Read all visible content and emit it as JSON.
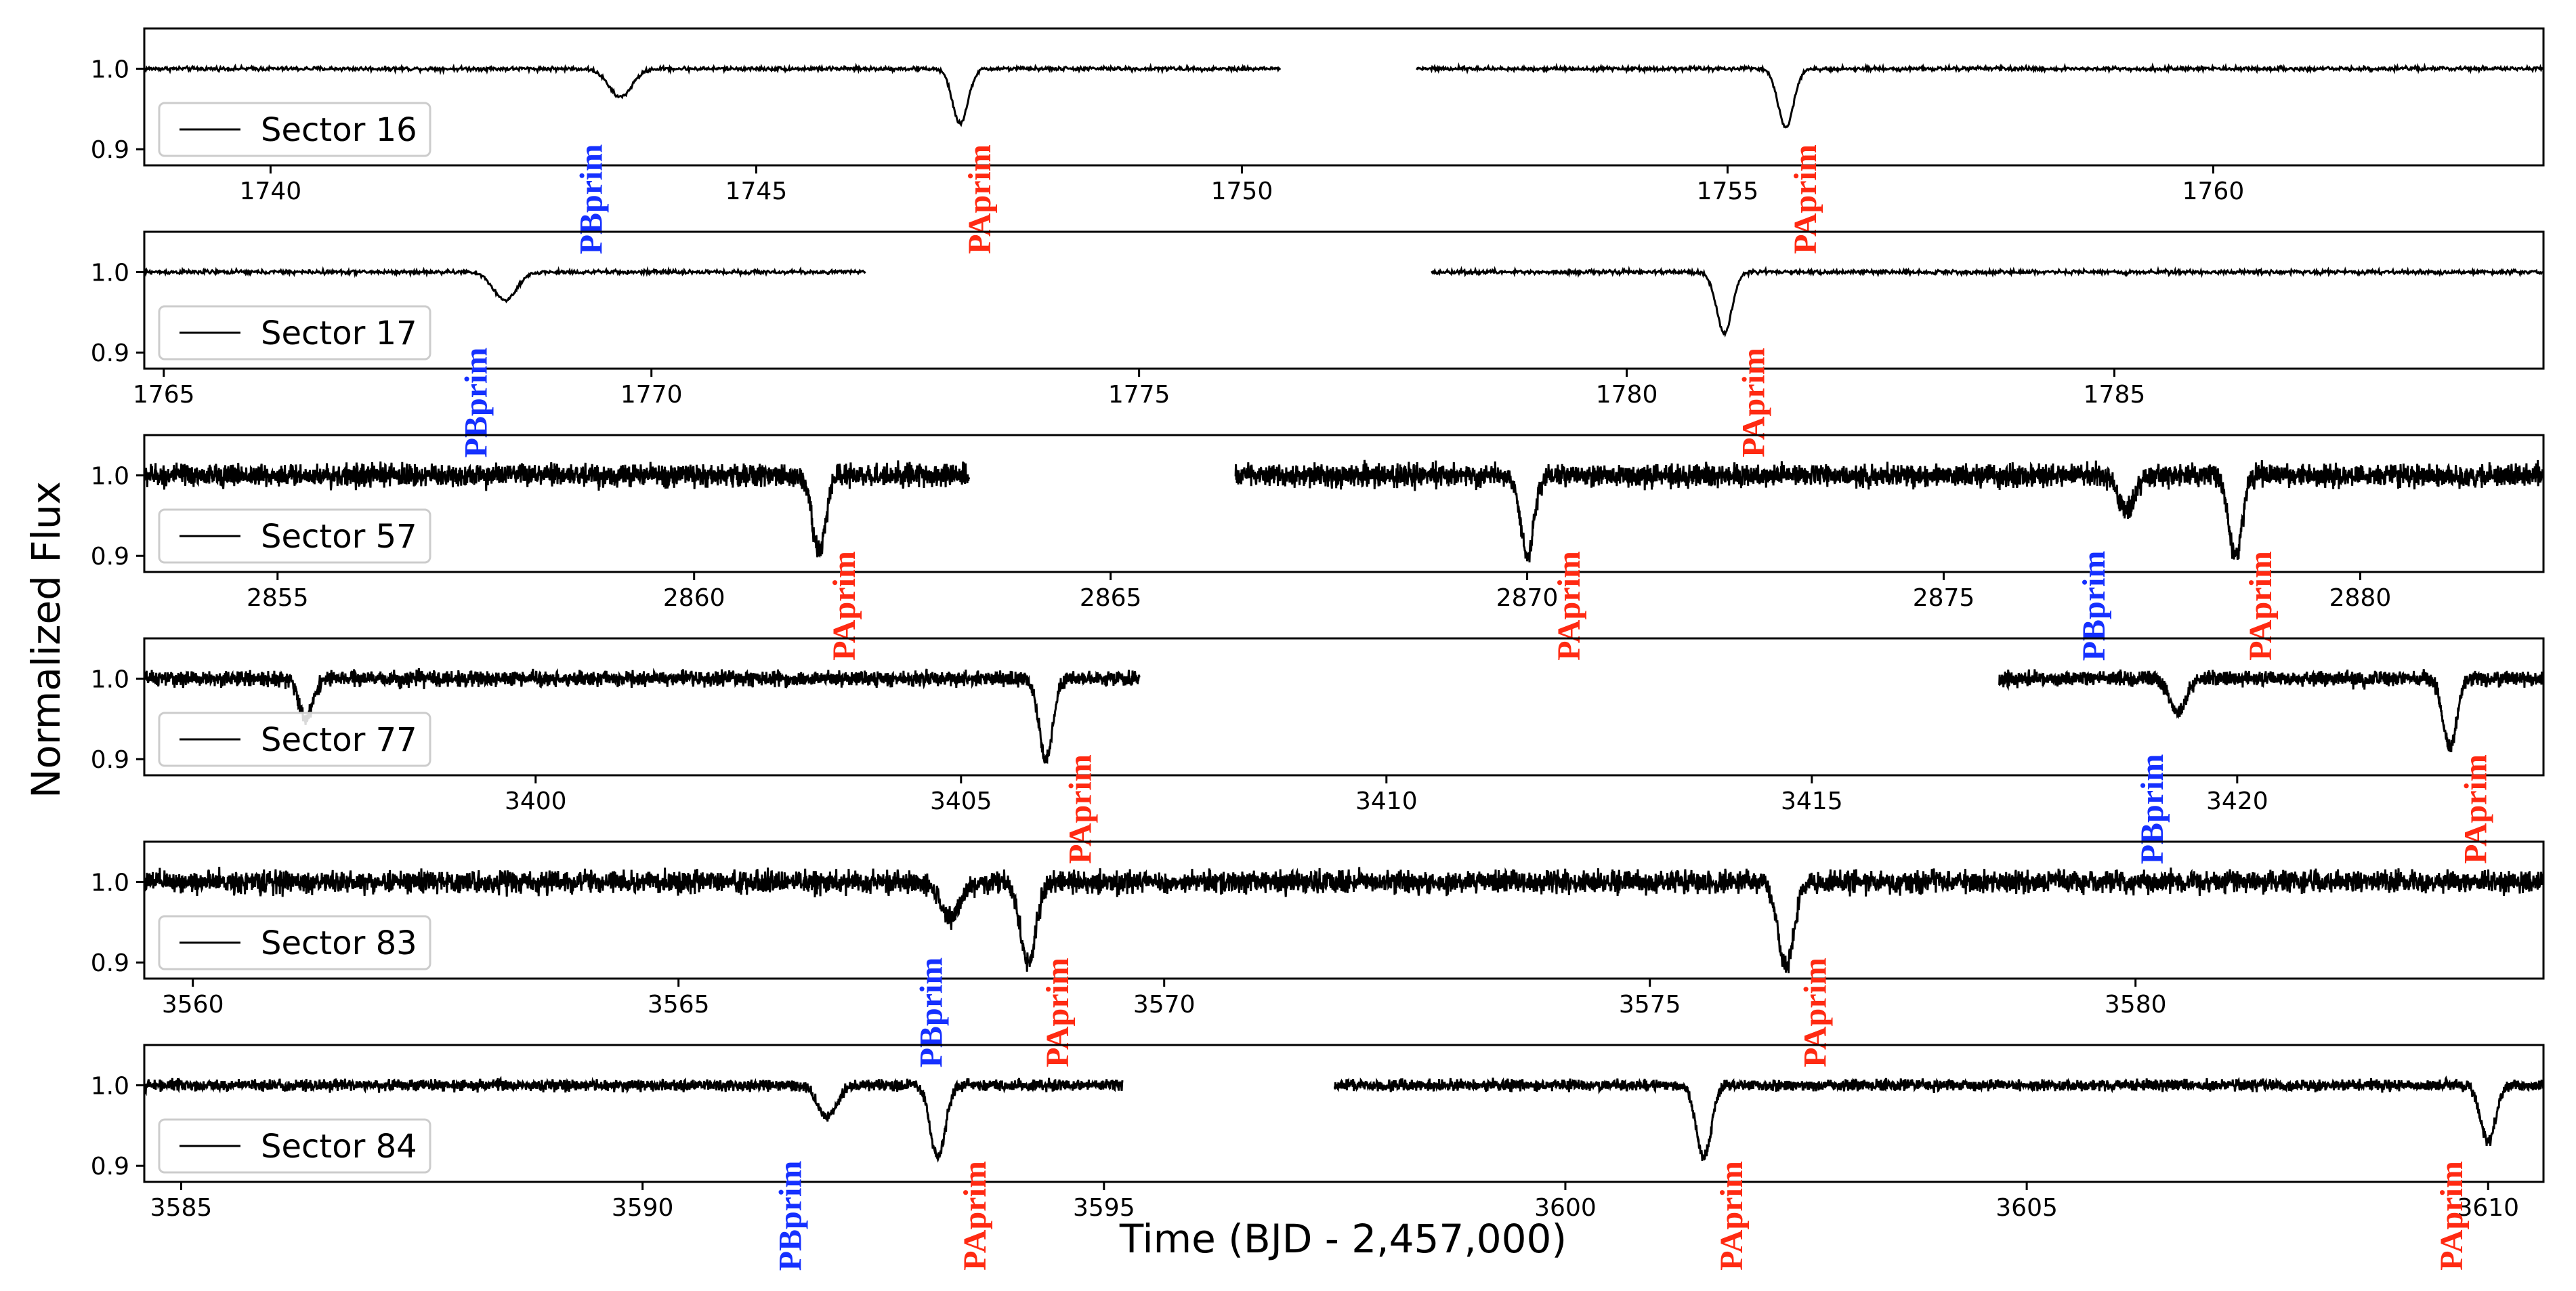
{
  "chart_data": {
    "type": "line",
    "ylabel": "Normalized Flux",
    "xlabel": "Time (BJD - 2,457,000)",
    "colors": {
      "data": "#000000",
      "PA": "#ff2a12",
      "PB": "#1530ff"
    },
    "panels": [
      {
        "legend": "Sector 16",
        "xlim": [
          1738.7,
          1763.4
        ],
        "ylim": [
          0.88,
          1.05
        ],
        "xticks": [
          1740,
          1745,
          1750,
          1755,
          1760
        ],
        "yticks": [
          0.9,
          1.0
        ],
        "noise": 0.003,
        "segments": [
          [
            1738.7,
            1750.4
          ],
          [
            1751.8,
            1763.4
          ]
        ],
        "dips": [
          {
            "t": 1743.6,
            "depth": 0.035,
            "width": 0.12
          },
          {
            "t": 1747.1,
            "depth": 0.068,
            "width": 0.08
          },
          {
            "t": 1755.6,
            "depth": 0.072,
            "width": 0.08
          }
        ],
        "labels": [
          {
            "text": "PBprim",
            "t": 1743.3,
            "kind": "PB"
          },
          {
            "text": "PAprim",
            "t": 1747.3,
            "kind": "PA"
          },
          {
            "text": "PAprim",
            "t": 1755.8,
            "kind": "PA"
          }
        ]
      },
      {
        "legend": "Sector 17",
        "xlim": [
          1764.8,
          1789.4
        ],
        "ylim": [
          0.88,
          1.05
        ],
        "xticks": [
          1765,
          1770,
          1775,
          1780,
          1785
        ],
        "yticks": [
          0.9,
          1.0
        ],
        "noise": 0.003,
        "segments": [
          [
            1764.8,
            1772.2
          ],
          [
            1778.0,
            1789.4
          ]
        ],
        "dips": [
          {
            "t": 1768.5,
            "depth": 0.035,
            "width": 0.12
          },
          {
            "t": 1781.0,
            "depth": 0.075,
            "width": 0.08
          }
        ],
        "labels": [
          {
            "text": "PBprim",
            "t": 1768.2,
            "kind": "PB"
          },
          {
            "text": "PAprim",
            "t": 1781.3,
            "kind": "PA"
          }
        ]
      },
      {
        "legend": "Sector 57",
        "xlim": [
          2853.4,
          2882.2
        ],
        "ylim": [
          0.88,
          1.05
        ],
        "xticks": [
          2855,
          2860,
          2865,
          2870,
          2875,
          2880
        ],
        "yticks": [
          0.9,
          1.0
        ],
        "noise": 0.012,
        "segments": [
          [
            2853.4,
            2863.3
          ],
          [
            2866.5,
            2882.2
          ]
        ],
        "dips": [
          {
            "t": 2861.5,
            "depth": 0.095,
            "width": 0.08
          },
          {
            "t": 2870.0,
            "depth": 0.1,
            "width": 0.08
          },
          {
            "t": 2877.2,
            "depth": 0.045,
            "width": 0.1
          },
          {
            "t": 2878.5,
            "depth": 0.1,
            "width": 0.08
          }
        ],
        "labels": [
          {
            "text": "PAprim",
            "t": 2861.8,
            "kind": "PA"
          },
          {
            "text": "PAprim",
            "t": 2870.5,
            "kind": "PA"
          },
          {
            "text": "PBprim",
            "t": 2876.8,
            "kind": "PB"
          },
          {
            "text": "PAprim",
            "t": 2878.8,
            "kind": "PA"
          }
        ]
      },
      {
        "legend": "Sector 77",
        "xlim": [
          3395.4,
          3423.6
        ],
        "ylim": [
          0.88,
          1.05
        ],
        "xticks": [
          3400,
          3405,
          3410,
          3415,
          3420
        ],
        "yticks": [
          0.9,
          1.0
        ],
        "noise": 0.008,
        "segments": [
          [
            3395.4,
            3407.1
          ],
          [
            3417.2,
            3423.6
          ]
        ],
        "dips": [
          {
            "t": 3397.3,
            "depth": 0.05,
            "width": 0.08
          },
          {
            "t": 3406.0,
            "depth": 0.1,
            "width": 0.08
          },
          {
            "t": 3419.3,
            "depth": 0.04,
            "width": 0.1
          },
          {
            "t": 3422.5,
            "depth": 0.085,
            "width": 0.08
          }
        ],
        "labels": [
          {
            "text": "PAprim",
            "t": 3406.4,
            "kind": "PA"
          },
          {
            "text": "PBprim",
            "t": 3419.0,
            "kind": "PB"
          },
          {
            "text": "PAprim",
            "t": 3422.8,
            "kind": "PA"
          }
        ]
      },
      {
        "legend": "Sector 83",
        "xlim": [
          3559.5,
          3584.2
        ],
        "ylim": [
          0.88,
          1.05
        ],
        "xticks": [
          3560,
          3565,
          3570,
          3575,
          3580
        ],
        "yticks": [
          0.9,
          1.0
        ],
        "noise": 0.012,
        "segments": [
          [
            3559.5,
            3584.2
          ]
        ],
        "dips": [
          {
            "t": 3567.8,
            "depth": 0.045,
            "width": 0.1
          },
          {
            "t": 3568.6,
            "depth": 0.1,
            "width": 0.08
          },
          {
            "t": 3576.4,
            "depth": 0.105,
            "width": 0.08
          }
        ],
        "labels": [
          {
            "text": "PBprim",
            "t": 3567.6,
            "kind": "PB"
          },
          {
            "text": "PAprim",
            "t": 3568.9,
            "kind": "PA"
          },
          {
            "text": "PAprim",
            "t": 3576.7,
            "kind": "PA"
          }
        ]
      },
      {
        "legend": "Sector 84",
        "xlim": [
          3584.6,
          3610.6
        ],
        "ylim": [
          0.88,
          1.05
        ],
        "xticks": [
          3585,
          3590,
          3595,
          3600,
          3605,
          3610
        ],
        "yticks": [
          0.9,
          1.0
        ],
        "noise": 0.006,
        "segments": [
          [
            3584.6,
            3595.2
          ],
          [
            3597.5,
            3610.6
          ]
        ],
        "dips": [
          {
            "t": 3592.0,
            "depth": 0.04,
            "width": 0.1
          },
          {
            "t": 3593.2,
            "depth": 0.09,
            "width": 0.08
          },
          {
            "t": 3601.5,
            "depth": 0.09,
            "width": 0.08
          },
          {
            "t": 3610.0,
            "depth": 0.07,
            "width": 0.08
          }
        ],
        "labels": [
          {
            "text": "PBprim",
            "t": 3591.6,
            "kind": "PB"
          },
          {
            "text": "PAprim",
            "t": 3593.6,
            "kind": "PA"
          },
          {
            "text": "PAprim",
            "t": 3601.8,
            "kind": "PA"
          },
          {
            "text": "PAprim",
            "t": 3609.6,
            "kind": "PA"
          }
        ]
      }
    ]
  }
}
